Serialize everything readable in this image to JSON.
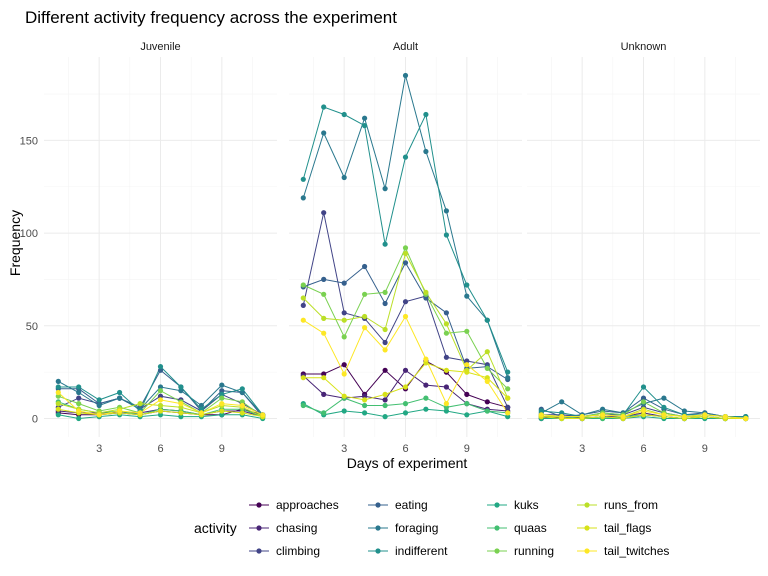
{
  "chart_data": {
    "type": "line",
    "title": "Different activity frequency across the experiment",
    "xlabel": "Days of experiment",
    "ylabel": "Frequency",
    "xlim": [
      0.3,
      11.7
    ],
    "ylim": [
      -10,
      195
    ],
    "x_ticks": [
      3,
      6,
      9
    ],
    "y_ticks": [
      0,
      50,
      100,
      150
    ],
    "x": [
      1,
      2,
      3,
      4,
      5,
      6,
      7,
      8,
      9,
      10,
      11
    ],
    "panels": [
      {
        "name": "Juvenile",
        "series": [
          {
            "name": "approaches",
            "color": "#440154",
            "values": [
              3,
              2,
              2,
              3,
              2,
              4,
              3,
              2,
              2,
              5,
              2
            ]
          },
          {
            "name": "chasing",
            "color": "#482576",
            "values": [
              4,
              3,
              3,
              3,
              3,
              5,
              4,
              2,
              4,
              4,
              1
            ]
          },
          {
            "name": "climbing",
            "color": "#414487",
            "values": [
              6,
              11,
              8,
              11,
              5,
              12,
              10,
              4,
              13,
              8,
              2
            ]
          },
          {
            "name": "eating",
            "color": "#35608D",
            "values": [
              16,
              16,
              8,
              11,
              6,
              26,
              17,
              4,
              15,
              14,
              1
            ]
          },
          {
            "name": "foraging",
            "color": "#2A788E",
            "values": [
              20,
              14,
              7,
              11,
              5,
              17,
              15,
              7,
              18,
              14,
              2
            ]
          },
          {
            "name": "indifferent",
            "color": "#21908C",
            "values": [
              17,
              17,
              10,
              14,
              4,
              28,
              17,
              5,
              13,
              16,
              2
            ]
          },
          {
            "name": "kuks",
            "color": "#22A884",
            "values": [
              2,
              0,
              1,
              2,
              1,
              2,
              1,
              1,
              2,
              2,
              0
            ]
          },
          {
            "name": "quaas",
            "color": "#43BF71",
            "values": [
              9,
              5,
              3,
              4,
              2,
              5,
              4,
              2,
              5,
              5,
              1
            ]
          },
          {
            "name": "running",
            "color": "#7AD151",
            "values": [
              12,
              8,
              4,
              6,
              3,
              15,
              9,
              3,
              11,
              9,
              1
            ]
          },
          {
            "name": "runs_from",
            "color": "#BBDF27",
            "values": [
              8,
              5,
              3,
              5,
              8,
              7,
              6,
              3,
              7,
              6,
              1
            ]
          },
          {
            "name": "tail_flags",
            "color": "#D7E219",
            "values": [
              5,
              3,
              2,
              3,
              2,
              4,
              3,
              2,
              4,
              3,
              1
            ]
          },
          {
            "name": "tail_twitches",
            "color": "#FDE725",
            "values": [
              14,
              4,
              2,
              4,
              3,
              10,
              8,
              3,
              8,
              7,
              2
            ]
          }
        ]
      },
      {
        "name": "Adult",
        "series": [
          {
            "name": "approaches",
            "color": "#440154",
            "values": [
              24,
              24,
              29,
              13,
              26,
              16,
              31,
              25,
              13,
              9,
              6
            ]
          },
          {
            "name": "chasing",
            "color": "#482576",
            "values": [
              23,
              13,
              11,
              12,
              10,
              26,
              18,
              17,
              8,
              5,
              4
            ]
          },
          {
            "name": "climbing",
            "color": "#414487",
            "values": [
              61,
              111,
              57,
              54,
              41,
              63,
              66,
              33,
              31,
              29,
              6
            ]
          },
          {
            "name": "eating",
            "color": "#35608D",
            "values": [
              71,
              75,
              73,
              82,
              62,
              84,
              65,
              57,
              27,
              28,
              21
            ]
          },
          {
            "name": "foraging",
            "color": "#2A788E",
            "values": [
              119,
              154,
              130,
              162,
              124,
              185,
              144,
              112,
              66,
              53,
              22
            ]
          },
          {
            "name": "indifferent",
            "color": "#21908C",
            "values": [
              129,
              168,
              164,
              158,
              94,
              141,
              164,
              99,
              72,
              53,
              25
            ]
          },
          {
            "name": "kuks",
            "color": "#22A884",
            "values": [
              8,
              2,
              4,
              3,
              1,
              3,
              5,
              4,
              2,
              4,
              1
            ]
          },
          {
            "name": "quaas",
            "color": "#43BF71",
            "values": [
              7,
              3,
              11,
              7,
              7,
              8,
              11,
              6,
              8,
              4,
              3
            ]
          },
          {
            "name": "running",
            "color": "#7AD151",
            "values": [
              72,
              67,
              44,
              67,
              68,
              92,
              67,
              46,
              47,
              27,
              16
            ]
          },
          {
            "name": "runs_from",
            "color": "#BBDF27",
            "values": [
              65,
              54,
              53,
              55,
              48,
              89,
              68,
              51,
              26,
              36,
              11
            ]
          },
          {
            "name": "tail_flags",
            "color": "#D7E219",
            "values": [
              22,
              22,
              12,
              10,
              13,
              17,
              30,
              26,
              25,
              22,
              11
            ]
          },
          {
            "name": "tail_twitches",
            "color": "#FDE725",
            "values": [
              53,
              46,
              24,
              49,
              37,
              55,
              32,
              8,
              29,
              20,
              3
            ]
          }
        ]
      },
      {
        "name": "Unknown",
        "series": [
          {
            "name": "approaches",
            "color": "#440154",
            "values": [
              0,
              1,
              0,
              1,
              0,
              2,
              1,
              0,
              1,
              0,
              0
            ]
          },
          {
            "name": "chasing",
            "color": "#482576",
            "values": [
              1,
              1,
              0,
              1,
              1,
              3,
              1,
              0,
              1,
              0,
              0
            ]
          },
          {
            "name": "climbing",
            "color": "#414487",
            "values": [
              2,
              2,
              1,
              2,
              2,
              6,
              3,
              1,
              2,
              1,
              0
            ]
          },
          {
            "name": "eating",
            "color": "#35608D",
            "values": [
              5,
              1,
              2,
              4,
              3,
              11,
              5,
              2,
              3,
              1,
              1
            ]
          },
          {
            "name": "foraging",
            "color": "#2A788E",
            "values": [
              3,
              9,
              2,
              5,
              3,
              8,
              11,
              4,
              3,
              1,
              1
            ]
          },
          {
            "name": "indifferent",
            "color": "#21908C",
            "values": [
              4,
              3,
              1,
              3,
              2,
              17,
              6,
              2,
              2,
              1,
              1
            ]
          },
          {
            "name": "kuks",
            "color": "#22A884",
            "values": [
              0,
              0,
              0,
              0,
              0,
              1,
              0,
              0,
              0,
              0,
              0
            ]
          },
          {
            "name": "quaas",
            "color": "#43BF71",
            "values": [
              1,
              0,
              1,
              0,
              1,
              2,
              1,
              0,
              1,
              0,
              0
            ]
          },
          {
            "name": "running",
            "color": "#7AD151",
            "values": [
              2,
              1,
              1,
              3,
              2,
              9,
              3,
              1,
              2,
              1,
              0
            ]
          },
          {
            "name": "runs_from",
            "color": "#BBDF27",
            "values": [
              1,
              1,
              1,
              2,
              1,
              5,
              2,
              1,
              1,
              0,
              0
            ]
          },
          {
            "name": "tail_flags",
            "color": "#D7E219",
            "values": [
              1,
              0,
              0,
              1,
              0,
              2,
              1,
              0,
              1,
              0,
              0
            ]
          },
          {
            "name": "tail_twitches",
            "color": "#FDE725",
            "values": [
              2,
              1,
              1,
              2,
              1,
              4,
              2,
              1,
              2,
              1,
              0
            ]
          }
        ]
      }
    ],
    "legend": {
      "title": "activity",
      "position": "bottom",
      "items": [
        {
          "label": "approaches",
          "color": "#440154"
        },
        {
          "label": "chasing",
          "color": "#482576"
        },
        {
          "label": "climbing",
          "color": "#414487"
        },
        {
          "label": "eating",
          "color": "#35608D"
        },
        {
          "label": "foraging",
          "color": "#2A788E"
        },
        {
          "label": "indifferent",
          "color": "#21908C"
        },
        {
          "label": "kuks",
          "color": "#22A884"
        },
        {
          "label": "quaas",
          "color": "#43BF71"
        },
        {
          "label": "running",
          "color": "#7AD151"
        },
        {
          "label": "runs_from",
          "color": "#BBDF27"
        },
        {
          "label": "tail_flags",
          "color": "#D7E219"
        },
        {
          "label": "tail_twitches",
          "color": "#FDE725"
        }
      ]
    }
  }
}
